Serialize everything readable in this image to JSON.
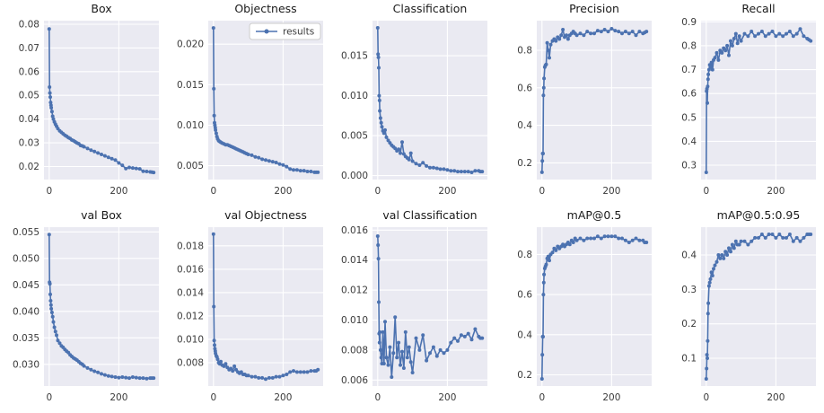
{
  "figure": {
    "background": "#ffffff",
    "axes_background": "#eaeaf2",
    "grid_color": "#ffffff",
    "line_color": "#4c72b0",
    "tick_color": "#3a3a3a",
    "title_color": "#1a1a1a"
  },
  "legend": {
    "label": "results"
  },
  "chart_data": {
    "type": "line",
    "layout": {
      "rows": 2,
      "cols": 5
    },
    "legend_position": "upper-right-of-objectness-panel",
    "grid": true,
    "xlabel": "",
    "xlim": [
      -15,
      315
    ],
    "xticks": [
      0,
      200
    ],
    "xtick_labels": [
      "0",
      "200"
    ],
    "x": [
      0,
      1,
      2,
      3,
      4,
      5,
      6,
      8,
      10,
      12,
      15,
      18,
      21,
      25,
      30,
      35,
      40,
      45,
      50,
      55,
      60,
      65,
      70,
      75,
      80,
      85,
      90,
      95,
      100,
      110,
      120,
      130,
      140,
      150,
      160,
      170,
      180,
      190,
      200,
      210,
      220,
      230,
      240,
      250,
      260,
      270,
      280,
      290,
      295,
      300
    ],
    "panels": [
      {
        "id": "box",
        "title": "Box",
        "ylim": [
          0.0145,
          0.0815
        ],
        "yticks": [
          0.02,
          0.03,
          0.04,
          0.05,
          0.06,
          0.07,
          0.08
        ],
        "ytick_labels": [
          "0.02",
          "0.03",
          "0.04",
          "0.05",
          "0.06",
          "0.07",
          "0.08"
        ],
        "legend": false,
        "y": [
          0.078,
          0.0535,
          0.051,
          0.0493,
          0.047,
          0.0458,
          0.0448,
          0.0432,
          0.0412,
          0.04,
          0.0388,
          0.0378,
          0.037,
          0.036,
          0.035,
          0.0344,
          0.0338,
          0.0332,
          0.0328,
          0.0322,
          0.0318,
          0.0312,
          0.0309,
          0.0304,
          0.0299,
          0.0296,
          0.0289,
          0.0287,
          0.0283,
          0.0276,
          0.0269,
          0.0263,
          0.0257,
          0.0251,
          0.0245,
          0.0239,
          0.0233,
          0.0227,
          0.0215,
          0.0205,
          0.0191,
          0.0196,
          0.0194,
          0.0192,
          0.019,
          0.018,
          0.0179,
          0.0177,
          0.0176,
          0.0175
        ]
      },
      {
        "id": "objectness",
        "title": "Objectness",
        "ylim": [
          0.0033,
          0.0229
        ],
        "yticks": [
          0.005,
          0.01,
          0.015,
          0.02
        ],
        "ytick_labels": [
          "0.005",
          "0.010",
          "0.015",
          "0.020"
        ],
        "legend": true,
        "y": [
          0.022,
          0.0145,
          0.0112,
          0.0103,
          0.01,
          0.0097,
          0.0094,
          0.009,
          0.0086,
          0.0083,
          0.0081,
          0.008,
          0.0079,
          0.0078,
          0.0077,
          0.0076,
          0.0076,
          0.0075,
          0.0074,
          0.0073,
          0.0072,
          0.0071,
          0.007,
          0.0069,
          0.0068,
          0.0067,
          0.0066,
          0.0065,
          0.0064,
          0.0063,
          0.0061,
          0.006,
          0.0058,
          0.0057,
          0.0056,
          0.0055,
          0.0054,
          0.0052,
          0.0051,
          0.0049,
          0.0046,
          0.0045,
          0.0045,
          0.0044,
          0.0044,
          0.0043,
          0.0043,
          0.0042,
          0.0042,
          0.0042
        ]
      },
      {
        "id": "classification",
        "title": "Classification",
        "ylim": [
          -0.0005,
          0.0194
        ],
        "yticks": [
          0.0,
          0.005,
          0.01,
          0.015
        ],
        "ytick_labels": [
          "0.000",
          "0.005",
          "0.010",
          "0.015"
        ],
        "legend": false,
        "y": [
          0.0185,
          0.0152,
          0.0148,
          0.0135,
          0.01,
          0.0094,
          0.0081,
          0.0072,
          0.0066,
          0.0061,
          0.0056,
          0.0053,
          0.0057,
          0.0048,
          0.0044,
          0.0041,
          0.0038,
          0.0036,
          0.0034,
          0.0031,
          0.0033,
          0.0028,
          0.0042,
          0.0027,
          0.0024,
          0.0022,
          0.002,
          0.0028,
          0.0018,
          0.0015,
          0.0013,
          0.0016,
          0.0012,
          0.001,
          0.001,
          0.0009,
          0.0008,
          0.0008,
          0.0007,
          0.0006,
          0.0006,
          0.0005,
          0.0005,
          0.0005,
          0.0005,
          0.0004,
          0.0006,
          0.0006,
          0.0005,
          0.0005
        ]
      },
      {
        "id": "precision",
        "title": "Precision",
        "ylim": [
          0.111,
          0.958
        ],
        "yticks": [
          0.2,
          0.4,
          0.6,
          0.8
        ],
        "ytick_labels": [
          "0.2",
          "0.4",
          "0.6",
          "0.8"
        ],
        "legend": false,
        "y": [
          0.15,
          0.21,
          0.25,
          0.25,
          0.56,
          0.6,
          0.65,
          0.71,
          0.72,
          0.725,
          0.84,
          0.8,
          0.76,
          0.83,
          0.85,
          0.86,
          0.85,
          0.87,
          0.86,
          0.88,
          0.91,
          0.87,
          0.88,
          0.86,
          0.88,
          0.89,
          0.9,
          0.89,
          0.88,
          0.89,
          0.88,
          0.9,
          0.89,
          0.89,
          0.905,
          0.9,
          0.91,
          0.9,
          0.915,
          0.905,
          0.9,
          0.89,
          0.9,
          0.89,
          0.9,
          0.88,
          0.9,
          0.89,
          0.895,
          0.9
        ]
      },
      {
        "id": "recall",
        "title": "Recall",
        "ylim": [
          0.24,
          0.905
        ],
        "yticks": [
          0.3,
          0.4,
          0.5,
          0.6,
          0.7,
          0.8,
          0.9
        ],
        "ytick_labels": [
          "0.3",
          "0.4",
          "0.5",
          "0.6",
          "0.7",
          "0.8",
          "0.9"
        ],
        "legend": false,
        "y": [
          0.27,
          0.61,
          0.62,
          0.56,
          0.63,
          0.66,
          0.68,
          0.7,
          0.72,
          0.71,
          0.73,
          0.7,
          0.74,
          0.75,
          0.77,
          0.74,
          0.78,
          0.77,
          0.79,
          0.78,
          0.8,
          0.76,
          0.82,
          0.8,
          0.83,
          0.85,
          0.81,
          0.84,
          0.82,
          0.85,
          0.84,
          0.86,
          0.84,
          0.85,
          0.86,
          0.84,
          0.85,
          0.86,
          0.84,
          0.85,
          0.84,
          0.85,
          0.86,
          0.84,
          0.85,
          0.87,
          0.84,
          0.83,
          0.825,
          0.82
        ]
      },
      {
        "id": "val-box",
        "title": "val Box",
        "ylim": [
          0.0259,
          0.0559
        ],
        "yticks": [
          0.03,
          0.035,
          0.04,
          0.045,
          0.05,
          0.055
        ],
        "ytick_labels": [
          "0.030",
          "0.035",
          "0.040",
          "0.045",
          "0.050",
          "0.055"
        ],
        "legend": false,
        "y": [
          0.0545,
          0.0455,
          0.0452,
          0.0432,
          0.042,
          0.0412,
          0.0405,
          0.0398,
          0.039,
          0.038,
          0.037,
          0.0362,
          0.0355,
          0.0345,
          0.034,
          0.0335,
          0.0332,
          0.0328,
          0.0325,
          0.0322,
          0.0318,
          0.0315,
          0.0312,
          0.031,
          0.0308,
          0.0305,
          0.0302,
          0.03,
          0.0297,
          0.0293,
          0.029,
          0.0287,
          0.0285,
          0.0282,
          0.028,
          0.0278,
          0.0277,
          0.0276,
          0.0275,
          0.0276,
          0.0275,
          0.0274,
          0.0276,
          0.0275,
          0.0274,
          0.0274,
          0.0273,
          0.0274,
          0.0274,
          0.0274
        ]
      },
      {
        "id": "val-objectness",
        "title": "val Objectness",
        "ylim": [
          0.006,
          0.0196
        ],
        "yticks": [
          0.008,
          0.01,
          0.012,
          0.014,
          0.016,
          0.018
        ],
        "ytick_labels": [
          "0.008",
          "0.010",
          "0.012",
          "0.014",
          "0.016",
          "0.018"
        ],
        "legend": false,
        "y": [
          0.019,
          0.0128,
          0.0099,
          0.0095,
          0.0092,
          0.009,
          0.0088,
          0.0086,
          0.0085,
          0.0083,
          0.008,
          0.0079,
          0.0081,
          0.0078,
          0.0077,
          0.0079,
          0.0076,
          0.0074,
          0.0075,
          0.0073,
          0.0077,
          0.0074,
          0.0072,
          0.0071,
          0.0072,
          0.007,
          0.007,
          0.0069,
          0.0069,
          0.0068,
          0.0068,
          0.0067,
          0.0067,
          0.0066,
          0.0067,
          0.0067,
          0.0068,
          0.0068,
          0.0069,
          0.007,
          0.0072,
          0.0073,
          0.0072,
          0.0072,
          0.0072,
          0.0072,
          0.0073,
          0.0073,
          0.0073,
          0.0074
        ]
      },
      {
        "id": "val-classification",
        "title": "val Classification",
        "ylim": [
          0.0056,
          0.0162
        ],
        "yticks": [
          0.006,
          0.008,
          0.01,
          0.012,
          0.014,
          0.016
        ],
        "ytick_labels": [
          "0.006",
          "0.008",
          "0.010",
          "0.012",
          "0.014",
          "0.016"
        ],
        "legend": false,
        "y": [
          0.0156,
          0.015,
          0.0141,
          0.0112,
          0.0091,
          0.0085,
          0.0092,
          0.008,
          0.0075,
          0.0071,
          0.0092,
          0.0071,
          0.0099,
          0.0075,
          0.007,
          0.0082,
          0.0062,
          0.0078,
          0.0102,
          0.0075,
          0.0085,
          0.007,
          0.0079,
          0.0068,
          0.0092,
          0.0075,
          0.0082,
          0.0072,
          0.0065,
          0.0088,
          0.008,
          0.009,
          0.0073,
          0.0078,
          0.0082,
          0.0076,
          0.008,
          0.0078,
          0.008,
          0.0085,
          0.0088,
          0.0086,
          0.009,
          0.0089,
          0.0091,
          0.0087,
          0.0094,
          0.0089,
          0.0088,
          0.0088
        ]
      },
      {
        "id": "map05",
        "title": "mAP@0.5",
        "ylim": [
          0.144,
          0.936
        ],
        "yticks": [
          0.2,
          0.4,
          0.6,
          0.8
        ],
        "ytick_labels": [
          "0.2",
          "0.4",
          "0.6",
          "0.8"
        ],
        "legend": false,
        "y": [
          0.18,
          0.3,
          0.39,
          0.39,
          0.6,
          0.66,
          0.7,
          0.73,
          0.74,
          0.75,
          0.78,
          0.79,
          0.77,
          0.8,
          0.81,
          0.83,
          0.82,
          0.84,
          0.83,
          0.84,
          0.85,
          0.84,
          0.85,
          0.86,
          0.85,
          0.87,
          0.86,
          0.88,
          0.87,
          0.88,
          0.87,
          0.88,
          0.88,
          0.88,
          0.89,
          0.88,
          0.89,
          0.89,
          0.89,
          0.89,
          0.88,
          0.88,
          0.87,
          0.86,
          0.87,
          0.88,
          0.87,
          0.87,
          0.86,
          0.86
        ]
      },
      {
        "id": "map05-095",
        "title": "mAP@0.5:0.95",
        "ylim": [
          0.019,
          0.481
        ],
        "yticks": [
          0.1,
          0.2,
          0.3,
          0.4
        ],
        "ytick_labels": [
          "0.1",
          "0.2",
          "0.3",
          "0.4"
        ],
        "legend": false,
        "y": [
          0.04,
          0.07,
          0.11,
          0.1,
          0.15,
          0.23,
          0.26,
          0.31,
          0.32,
          0.33,
          0.35,
          0.34,
          0.36,
          0.37,
          0.38,
          0.4,
          0.39,
          0.4,
          0.39,
          0.41,
          0.4,
          0.42,
          0.41,
          0.43,
          0.42,
          0.44,
          0.43,
          0.43,
          0.44,
          0.44,
          0.43,
          0.44,
          0.45,
          0.45,
          0.46,
          0.45,
          0.46,
          0.46,
          0.45,
          0.46,
          0.45,
          0.45,
          0.46,
          0.44,
          0.45,
          0.44,
          0.45,
          0.46,
          0.46,
          0.46
        ]
      }
    ]
  }
}
